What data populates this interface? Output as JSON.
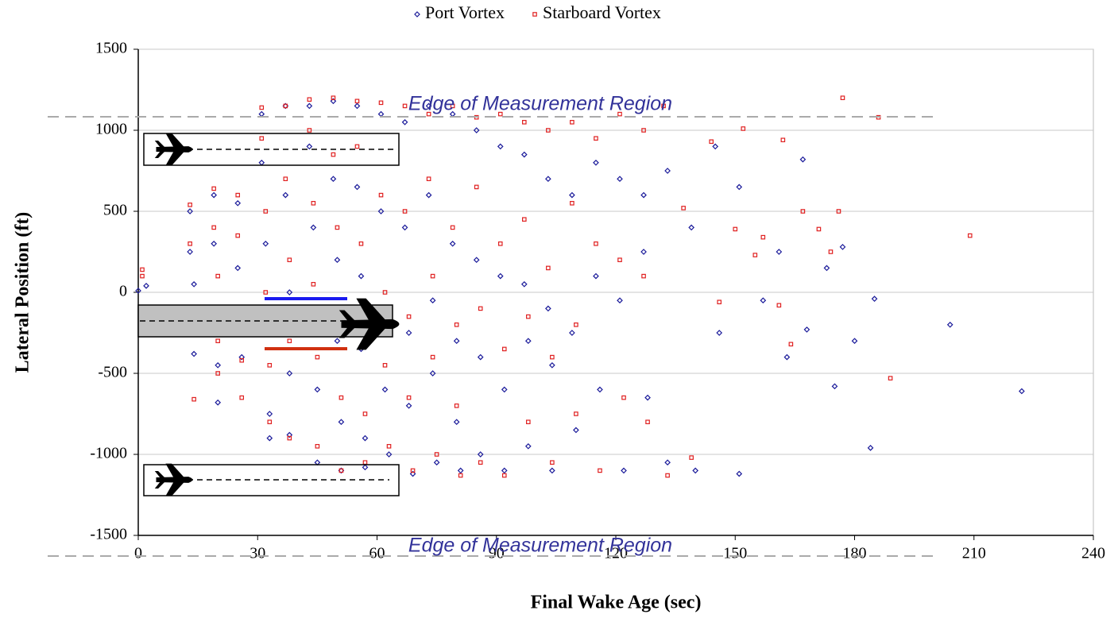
{
  "chart_data": {
    "type": "scatter",
    "xlabel": "Final Wake Age (sec)",
    "ylabel": "Lateral Position (ft)",
    "annotations": [
      "Edge of Measurement Region",
      "Edge of Measurement Region"
    ],
    "xlim": [
      0,
      240
    ],
    "xticks": [
      0,
      30,
      60,
      90,
      120,
      150,
      180,
      210,
      240
    ],
    "ylim": [
      -1500,
      1500
    ],
    "yticks": [
      -1500,
      -1000,
      -500,
      0,
      500,
      1000,
      1500
    ],
    "grid": true,
    "legend": "top",
    "series": [
      {
        "name": "Port Vortex",
        "color": "#1a1a9a",
        "marker": "diamond",
        "x": [
          0,
          2,
          13,
          13,
          14,
          14,
          14,
          19,
          19,
          20,
          20,
          20,
          25,
          25,
          26,
          26,
          31,
          31,
          32,
          32,
          33,
          33,
          37,
          37,
          38,
          38,
          38,
          43,
          43,
          44,
          44,
          45,
          45,
          49,
          49,
          50,
          50,
          51,
          51,
          55,
          55,
          56,
          56,
          57,
          57,
          61,
          61,
          62,
          62,
          63,
          67,
          67,
          68,
          68,
          69,
          73,
          73,
          74,
          74,
          75,
          79,
          79,
          80,
          80,
          81,
          85,
          85,
          86,
          86,
          91,
          91,
          92,
          92,
          97,
          97,
          98,
          98,
          103,
          103,
          104,
          104,
          109,
          109,
          110,
          115,
          115,
          116,
          121,
          121,
          122,
          127,
          127,
          128,
          133,
          133,
          139,
          140,
          145,
          146,
          151,
          151,
          157,
          161,
          163,
          167,
          168,
          173,
          175,
          177,
          180,
          184,
          185,
          204,
          222
        ],
        "values": [
          10,
          40,
          500,
          250,
          50,
          -150,
          -380,
          600,
          300,
          -100,
          -450,
          -680,
          550,
          150,
          -250,
          -400,
          1100,
          800,
          300,
          -200,
          -750,
          -900,
          1150,
          600,
          0,
          -500,
          -880,
          1150,
          900,
          400,
          -100,
          -600,
          -1050,
          1180,
          700,
          200,
          -300,
          -800,
          -1100,
          1150,
          650,
          100,
          -350,
          -900,
          -1080,
          1100,
          500,
          -100,
          -600,
          -1000,
          1050,
          400,
          -250,
          -700,
          -1120,
          1150,
          600,
          -50,
          -500,
          -1050,
          1100,
          300,
          -300,
          -800,
          -1100,
          1000,
          200,
          -400,
          -1000,
          900,
          100,
          -600,
          -1100,
          850,
          50,
          -300,
          -950,
          700,
          -100,
          -450,
          -1100,
          600,
          -250,
          -850,
          800,
          100,
          -600,
          700,
          -50,
          -1100,
          600,
          250,
          -650,
          750,
          -1050,
          400,
          -1100,
          900,
          -250,
          650,
          -1120,
          -50,
          250,
          -400,
          820,
          -230,
          150,
          -580,
          280,
          -300,
          -960,
          -40,
          -200,
          -610
        ]
      },
      {
        "name": "Starboard Vortex",
        "color": "#e02020",
        "marker": "square",
        "x": [
          1,
          1,
          13,
          13,
          14,
          14,
          19,
          19,
          20,
          20,
          20,
          25,
          25,
          26,
          26,
          26,
          31,
          31,
          32,
          32,
          33,
          33,
          37,
          37,
          38,
          38,
          38,
          43,
          43,
          44,
          44,
          45,
          45,
          49,
          49,
          50,
          50,
          51,
          51,
          55,
          55,
          56,
          56,
          57,
          57,
          61,
          61,
          62,
          62,
          63,
          67,
          67,
          68,
          68,
          69,
          73,
          73,
          74,
          74,
          75,
          79,
          79,
          80,
          80,
          81,
          85,
          85,
          86,
          86,
          91,
          91,
          92,
          92,
          97,
          97,
          98,
          98,
          103,
          103,
          104,
          104,
          109,
          109,
          110,
          110,
          115,
          115,
          116,
          121,
          121,
          122,
          127,
          127,
          128,
          132,
          133,
          137,
          139,
          144,
          146,
          150,
          152,
          155,
          157,
          161,
          162,
          164,
          167,
          171,
          174,
          176,
          177,
          186,
          189,
          209
        ],
        "values": [
          140,
          100,
          540,
          300,
          -100,
          -660,
          640,
          400,
          100,
          -300,
          -500,
          600,
          350,
          -100,
          -420,
          -650,
          1140,
          950,
          500,
          0,
          -450,
          -800,
          1150,
          700,
          200,
          -300,
          -900,
          1190,
          1000,
          550,
          50,
          -400,
          -950,
          1200,
          850,
          400,
          -150,
          -650,
          -1100,
          1180,
          900,
          300,
          -250,
          -750,
          -1050,
          1170,
          600,
          0,
          -450,
          -950,
          1150,
          500,
          -150,
          -650,
          -1100,
          1100,
          700,
          100,
          -400,
          -1000,
          1150,
          400,
          -200,
          -700,
          -1130,
          1080,
          650,
          -100,
          -1050,
          1100,
          300,
          -350,
          -1130,
          1050,
          450,
          -150,
          -800,
          1000,
          150,
          -400,
          -1050,
          1050,
          550,
          -200,
          -750,
          950,
          300,
          -1100,
          1100,
          200,
          -650,
          1000,
          100,
          -800,
          1150,
          -1130,
          520,
          -1020,
          930,
          -60,
          390,
          1010,
          230,
          340,
          -80,
          940,
          -320,
          500,
          390,
          250,
          500,
          1200,
          1080,
          -530,
          350
        ]
      }
    ]
  }
}
